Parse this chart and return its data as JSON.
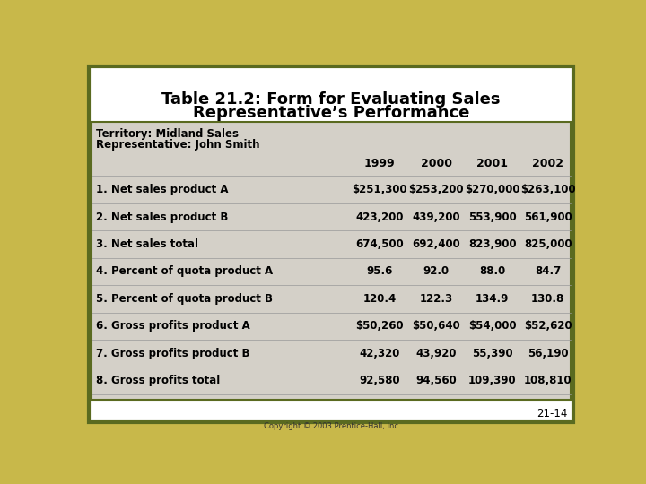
{
  "title_line1": "Table 21.2: Form for Evaluating Sales",
  "title_line2": "Representative’s Performance",
  "title_fontsize": 13,
  "background_outer": "#c8b84a",
  "background_inner": "#ffffff",
  "table_bg": "#d4d0c8",
  "border_color": "#5a6a20",
  "header_line1": "Territory: Midland Sales",
  "header_line2": "Representative: John Smith",
  "years": [
    "1999",
    "2000",
    "2001",
    "2002"
  ],
  "rows": [
    [
      "1. Net sales product A",
      "$251,300",
      "$253,200",
      "$270,000",
      "$263,100"
    ],
    [
      "2. Net sales product B",
      "423,200",
      "439,200",
      "553,900",
      "561,900"
    ],
    [
      "3. Net sales total",
      "674,500",
      "692,400",
      "823,900",
      "825,000"
    ],
    [
      "4. Percent of quota product A",
      "95.6",
      "92.0",
      "88.0",
      "84.7"
    ],
    [
      "5. Percent of quota product B",
      "120.4",
      "122.3",
      "134.9",
      "130.8"
    ],
    [
      "6. Gross profits product A",
      "$50,260",
      "$50,640",
      "$54,000",
      "$52,620"
    ],
    [
      "7. Gross profits product B",
      "42,320",
      "43,920",
      "55,390",
      "56,190"
    ],
    [
      "8. Gross profits total",
      "92,580",
      "94,560",
      "109,390",
      "108,810"
    ]
  ],
  "footer_center": "Copyright © 2003 Prentice-Hall, Inc",
  "footer_right": "21-14",
  "label_fontsize": 8.5,
  "data_fontsize": 8.5,
  "year_fontsize": 9,
  "header_fontsize": 8.5,
  "footer_fontsize": 6,
  "pagenum_fontsize": 8.5
}
